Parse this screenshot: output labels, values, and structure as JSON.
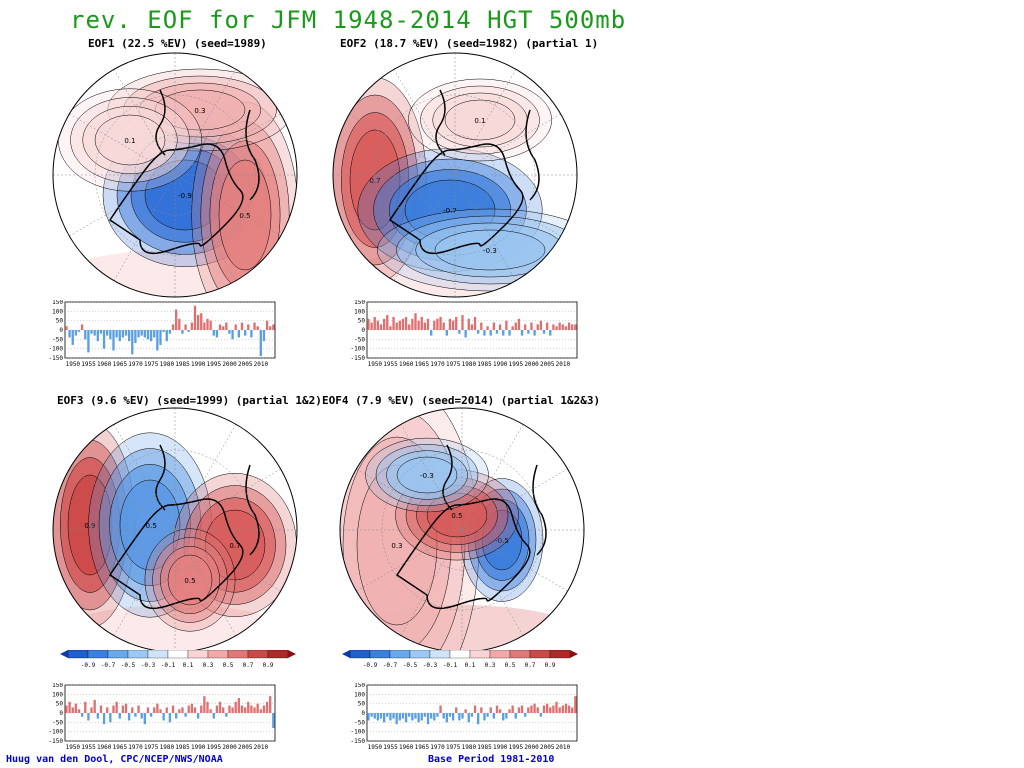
{
  "title": "rev. EOF for JFM 1948-2014 HGT 500mb",
  "footer_left": "Huug van den Dool, CPC/NCEP/NWS/NOAA",
  "footer_right": "Base Period 1981-2010",
  "colors": {
    "title": "#1a9a1a",
    "positive": "#e07070",
    "negative": "#5aa0e0",
    "footer": "#0000cc"
  },
  "colorbar": {
    "labels": [
      "-0.9",
      "-0.7",
      "-0.5",
      "-0.3",
      "-0.1",
      "0.1",
      "0.3",
      "0.5",
      "0.7",
      "0.9"
    ],
    "colors": [
      "#1f5fd0",
      "#3b7fe0",
      "#6aa8ec",
      "#9dc8f3",
      "#cfe4f8",
      "#ffffff",
      "#f8d4d4",
      "#f0a8a8",
      "#e07878",
      "#cc4848",
      "#b02828"
    ]
  },
  "panels": [
    {
      "title": "EOF1 (22.5 %EV)    (seed=1989)",
      "map_features": [
        {
          "sign": "neg",
          "label": "-0.9",
          "color": "#2f70d8"
        },
        {
          "sign": "pos",
          "label": "0.5",
          "color": "#e48080"
        },
        {
          "sign": "pos",
          "label": "0.3",
          "color": "#f0b0b0"
        },
        {
          "sign": "pos",
          "label": "0.1",
          "color": "#f8d8d8"
        }
      ]
    },
    {
      "title": "EOF2 (18.7 %EV)    (seed=1982) (partial 1)",
      "map_features": [
        {
          "sign": "pos",
          "label": "0.7",
          "color": "#d85a5a"
        },
        {
          "sign": "neg",
          "label": "-0.7",
          "color": "#3a7ddc"
        },
        {
          "sign": "neg",
          "label": "-0.3",
          "color": "#9ac4f0"
        },
        {
          "sign": "pos",
          "label": "0.1",
          "color": "#f8d8d8"
        }
      ]
    },
    {
      "title": "EOF3 (9.6 %EV)    (seed=1999) (partial 1&2)",
      "map_features": [
        {
          "sign": "pos",
          "label": "0.9",
          "color": "#cc4848"
        },
        {
          "sign": "neg",
          "label": "-0.5",
          "color": "#5a98e4"
        },
        {
          "sign": "pos",
          "label": "0.7",
          "color": "#d85a5a"
        },
        {
          "sign": "pos",
          "label": "0.5",
          "color": "#e48080"
        }
      ]
    },
    {
      "title": "EOF4 (7.9 %EV)    (seed=2014) (partial 1&2&3)",
      "map_features": [
        {
          "sign": "pos",
          "label": "0.3",
          "color": "#f0b0b0"
        },
        {
          "sign": "neg",
          "label": "-0.5",
          "color": "#3a7ddc"
        },
        {
          "sign": "pos",
          "label": "0.5",
          "color": "#d85a5a"
        },
        {
          "sign": "neg",
          "label": "-0.3",
          "color": "#9ac4f0"
        }
      ]
    }
  ],
  "chart_data": [
    {
      "type": "bar",
      "name": "EOF1 PC time series",
      "x": [
        1948,
        1949,
        1950,
        1951,
        1952,
        1953,
        1954,
        1955,
        1956,
        1957,
        1958,
        1959,
        1960,
        1961,
        1962,
        1963,
        1964,
        1965,
        1966,
        1967,
        1968,
        1969,
        1970,
        1971,
        1972,
        1973,
        1974,
        1975,
        1976,
        1977,
        1978,
        1979,
        1980,
        1981,
        1982,
        1983,
        1984,
        1985,
        1986,
        1987,
        1988,
        1989,
        1990,
        1991,
        1992,
        1993,
        1994,
        1995,
        1996,
        1997,
        1998,
        1999,
        2000,
        2001,
        2002,
        2003,
        2004,
        2005,
        2006,
        2007,
        2008,
        2009,
        2010,
        2011,
        2012,
        2013,
        2014
      ],
      "values": [
        20,
        -40,
        -80,
        -30,
        -10,
        30,
        -50,
        -120,
        -20,
        -30,
        -60,
        -20,
        -100,
        -30,
        -50,
        -110,
        -40,
        -60,
        -40,
        -30,
        -60,
        -130,
        -70,
        -40,
        -30,
        -40,
        -50,
        -60,
        -40,
        -110,
        -80,
        -10,
        -60,
        -20,
        30,
        110,
        60,
        -20,
        30,
        -10,
        40,
        130,
        80,
        90,
        40,
        60,
        50,
        -30,
        -40,
        30,
        20,
        40,
        -20,
        -50,
        30,
        -40,
        40,
        -30,
        30,
        -40,
        40,
        20,
        -140,
        -60,
        50,
        20,
        30
      ],
      "xlabels": [
        "1950",
        "1955",
        "1960",
        "1965",
        "1970",
        "1975",
        "1980",
        "1985",
        "1990",
        "1995",
        "2000",
        "2005",
        "2010"
      ],
      "ytick_labels": [
        "150",
        "100",
        "50",
        "0",
        "-50",
        "-100",
        "-150"
      ],
      "ylim": [
        -150,
        150
      ]
    },
    {
      "type": "bar",
      "name": "EOF2 PC time series",
      "x": [
        1948,
        1949,
        1950,
        1951,
        1952,
        1953,
        1954,
        1955,
        1956,
        1957,
        1958,
        1959,
        1960,
        1961,
        1962,
        1963,
        1964,
        1965,
        1966,
        1967,
        1968,
        1969,
        1970,
        1971,
        1972,
        1973,
        1974,
        1975,
        1976,
        1977,
        1978,
        1979,
        1980,
        1981,
        1982,
        1983,
        1984,
        1985,
        1986,
        1987,
        1988,
        1989,
        1990,
        1991,
        1992,
        1993,
        1994,
        1995,
        1996,
        1997,
        1998,
        1999,
        2000,
        2001,
        2002,
        2003,
        2004,
        2005,
        2006,
        2007,
        2008,
        2009,
        2010,
        2011,
        2012,
        2013,
        2014
      ],
      "values": [
        60,
        40,
        70,
        50,
        30,
        60,
        80,
        20,
        70,
        40,
        50,
        60,
        70,
        30,
        60,
        90,
        50,
        70,
        40,
        60,
        -30,
        50,
        60,
        70,
        40,
        -30,
        60,
        50,
        70,
        -20,
        80,
        -40,
        60,
        30,
        70,
        -20,
        40,
        -30,
        20,
        -30,
        40,
        -20,
        30,
        -30,
        50,
        -30,
        20,
        40,
        60,
        -30,
        30,
        -20,
        40,
        -30,
        30,
        50,
        -20,
        40,
        -30,
        30,
        20,
        40,
        30,
        20,
        40,
        30,
        30
      ],
      "xlabels": [
        "1950",
        "1955",
        "1960",
        "1965",
        "1970",
        "1975",
        "1980",
        "1985",
        "1990",
        "1995",
        "2000",
        "2005",
        "2010"
      ],
      "ytick_labels": [
        "150",
        "100",
        "50",
        "0",
        "-50",
        "-100",
        "-150"
      ],
      "ylim": [
        -150,
        150
      ]
    },
    {
      "type": "bar",
      "name": "EOF3 PC time series",
      "x": [
        1948,
        1949,
        1950,
        1951,
        1952,
        1953,
        1954,
        1955,
        1956,
        1957,
        1958,
        1959,
        1960,
        1961,
        1962,
        1963,
        1964,
        1965,
        1966,
        1967,
        1968,
        1969,
        1970,
        1971,
        1972,
        1973,
        1974,
        1975,
        1976,
        1977,
        1978,
        1979,
        1980,
        1981,
        1982,
        1983,
        1984,
        1985,
        1986,
        1987,
        1988,
        1989,
        1990,
        1991,
        1992,
        1993,
        1994,
        1995,
        1996,
        1997,
        1998,
        1999,
        2000,
        2001,
        2002,
        2003,
        2004,
        2005,
        2006,
        2007,
        2008,
        2009,
        2010,
        2011,
        2012,
        2013,
        2014
      ],
      "values": [
        40,
        60,
        30,
        50,
        20,
        -20,
        60,
        -40,
        30,
        70,
        -30,
        40,
        -60,
        30,
        -50,
        40,
        60,
        -30,
        40,
        50,
        -40,
        30,
        -20,
        40,
        -30,
        -60,
        30,
        -20,
        30,
        50,
        20,
        -40,
        30,
        -50,
        40,
        -30,
        20,
        30,
        -20,
        40,
        50,
        30,
        -30,
        40,
        90,
        60,
        20,
        -30,
        40,
        60,
        30,
        -20,
        40,
        30,
        60,
        80,
        40,
        30,
        60,
        40,
        30,
        50,
        20,
        40,
        60,
        90,
        -80
      ],
      "xlabels": [
        "1950",
        "1955",
        "1960",
        "1965",
        "1970",
        "1975",
        "1980",
        "1985",
        "1990",
        "1995",
        "2000",
        "2005",
        "2010"
      ],
      "ytick_labels": [
        "150",
        "100",
        "50",
        "0",
        "-50",
        "-100",
        "-150"
      ],
      "ylim": [
        -150,
        150
      ]
    },
    {
      "type": "bar",
      "name": "EOF4 PC time series",
      "x": [
        1948,
        1949,
        1950,
        1951,
        1952,
        1953,
        1954,
        1955,
        1956,
        1957,
        1958,
        1959,
        1960,
        1961,
        1962,
        1963,
        1964,
        1965,
        1966,
        1967,
        1968,
        1969,
        1970,
        1971,
        1972,
        1973,
        1974,
        1975,
        1976,
        1977,
        1978,
        1979,
        1980,
        1981,
        1982,
        1983,
        1984,
        1985,
        1986,
        1987,
        1988,
        1989,
        1990,
        1991,
        1992,
        1993,
        1994,
        1995,
        1996,
        1997,
        1998,
        1999,
        2000,
        2001,
        2002,
        2003,
        2004,
        2005,
        2006,
        2007,
        2008,
        2009,
        2010,
        2011,
        2012,
        2013,
        2014
      ],
      "values": [
        -40,
        -20,
        -30,
        -40,
        -30,
        -50,
        -20,
        -40,
        -30,
        -60,
        -40,
        -30,
        -50,
        -20,
        -40,
        -30,
        -50,
        -40,
        -20,
        -60,
        -30,
        -40,
        -20,
        40,
        -30,
        -50,
        -20,
        -40,
        30,
        -40,
        -30,
        20,
        -50,
        -20,
        40,
        -60,
        30,
        -40,
        -20,
        30,
        -30,
        40,
        20,
        -40,
        -30,
        20,
        40,
        -30,
        30,
        40,
        -20,
        30,
        40,
        50,
        30,
        -20,
        40,
        50,
        30,
        40,
        60,
        30,
        40,
        50,
        40,
        30,
        90
      ],
      "xlabels": [
        "1950",
        "1955",
        "1960",
        "1965",
        "1970",
        "1975",
        "1980",
        "1985",
        "1990",
        "1995",
        "2000",
        "2005",
        "2010"
      ],
      "ytick_labels": [
        "150",
        "100",
        "50",
        "0",
        "-50",
        "-100",
        "-150"
      ],
      "ylim": [
        -150,
        150
      ]
    }
  ]
}
